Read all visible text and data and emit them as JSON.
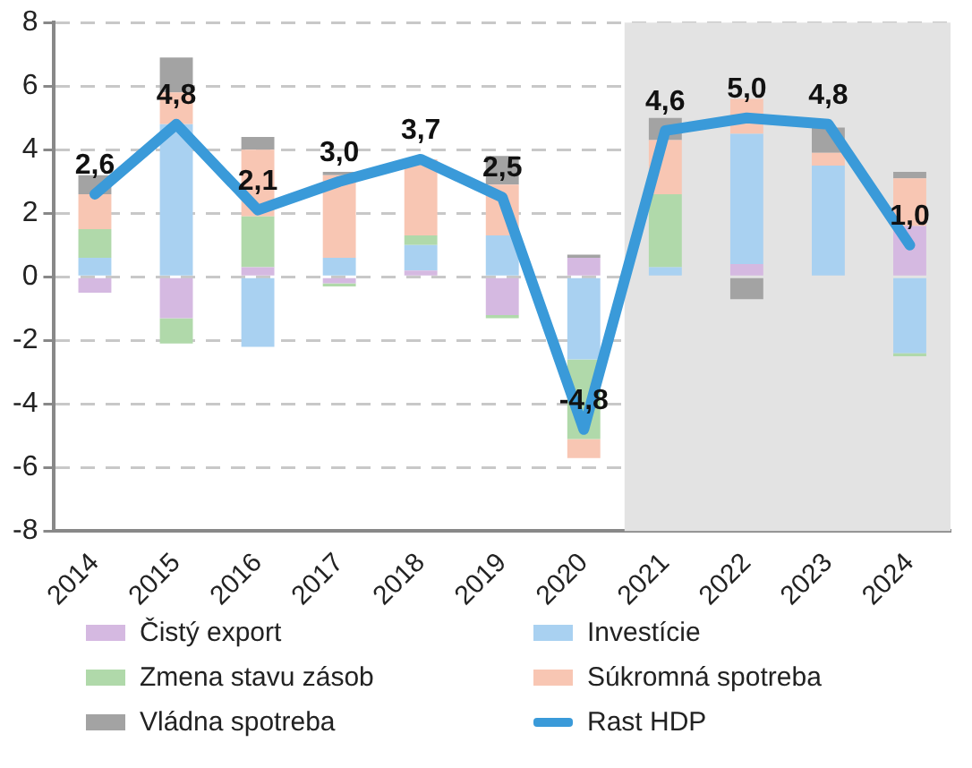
{
  "chart_data": {
    "type": "bar",
    "stacked": true,
    "categories": [
      "2014",
      "2015",
      "2016",
      "2017",
      "2018",
      "2019",
      "2020",
      "2021",
      "2022",
      "2023",
      "2024"
    ],
    "ylim": [
      -8,
      8
    ],
    "yticks": [
      -8,
      -6,
      -4,
      -2,
      0,
      2,
      4,
      6,
      8
    ],
    "grid": "y",
    "legend": "bottom",
    "series": [
      {
        "name": "Čistý export",
        "color": "#d5b9e1",
        "values": [
          -0.5,
          -1.3,
          0.3,
          -0.2,
          0.2,
          -1.2,
          0.6,
          null,
          0.4,
          null,
          1.6
        ]
      },
      {
        "name": "Investície",
        "color": "#a9d1f1",
        "values": [
          0.6,
          4.8,
          -2.2,
          0.6,
          0.8,
          1.3,
          -2.6,
          0.3,
          4.1,
          3.5,
          -2.4
        ]
      },
      {
        "name": "Zmena stavu zásob",
        "color": "#b0d9aa",
        "values": [
          0.9,
          -0.8,
          1.6,
          -0.1,
          0.3,
          -0.1,
          -2.5,
          2.3,
          null,
          null,
          -0.1
        ]
      },
      {
        "name": "Súkromná spotreba",
        "color": "#f8c6b3",
        "values": [
          1.1,
          1.0,
          2.1,
          2.6,
          2.4,
          1.6,
          -0.6,
          1.7,
          1.1,
          0.4,
          1.5
        ]
      },
      {
        "name": "Vládna spotreba",
        "color": "#a3a3a3",
        "values": [
          0.6,
          1.1,
          0.4,
          0.1,
          null,
          0.9,
          0.1,
          0.7,
          -0.7,
          0.8,
          0.2
        ]
      },
      {
        "name": "Rast HDP",
        "type": "line",
        "color": "#3a9ad9",
        "values": [
          2.6,
          4.8,
          2.1,
          3.0,
          3.7,
          2.5,
          -4.8,
          4.6,
          5.0,
          4.8,
          1.0
        ],
        "value_labels": [
          "2,6",
          "4,8",
          "2,1",
          "3,0",
          "3,7",
          "2,5",
          "-4,8",
          "4,6",
          "5,0",
          "4,8",
          "1,0"
        ]
      }
    ],
    "bands": [
      {
        "axis": "x",
        "from": "2021",
        "to": "2024",
        "color": "#e3e3e3"
      }
    ]
  }
}
